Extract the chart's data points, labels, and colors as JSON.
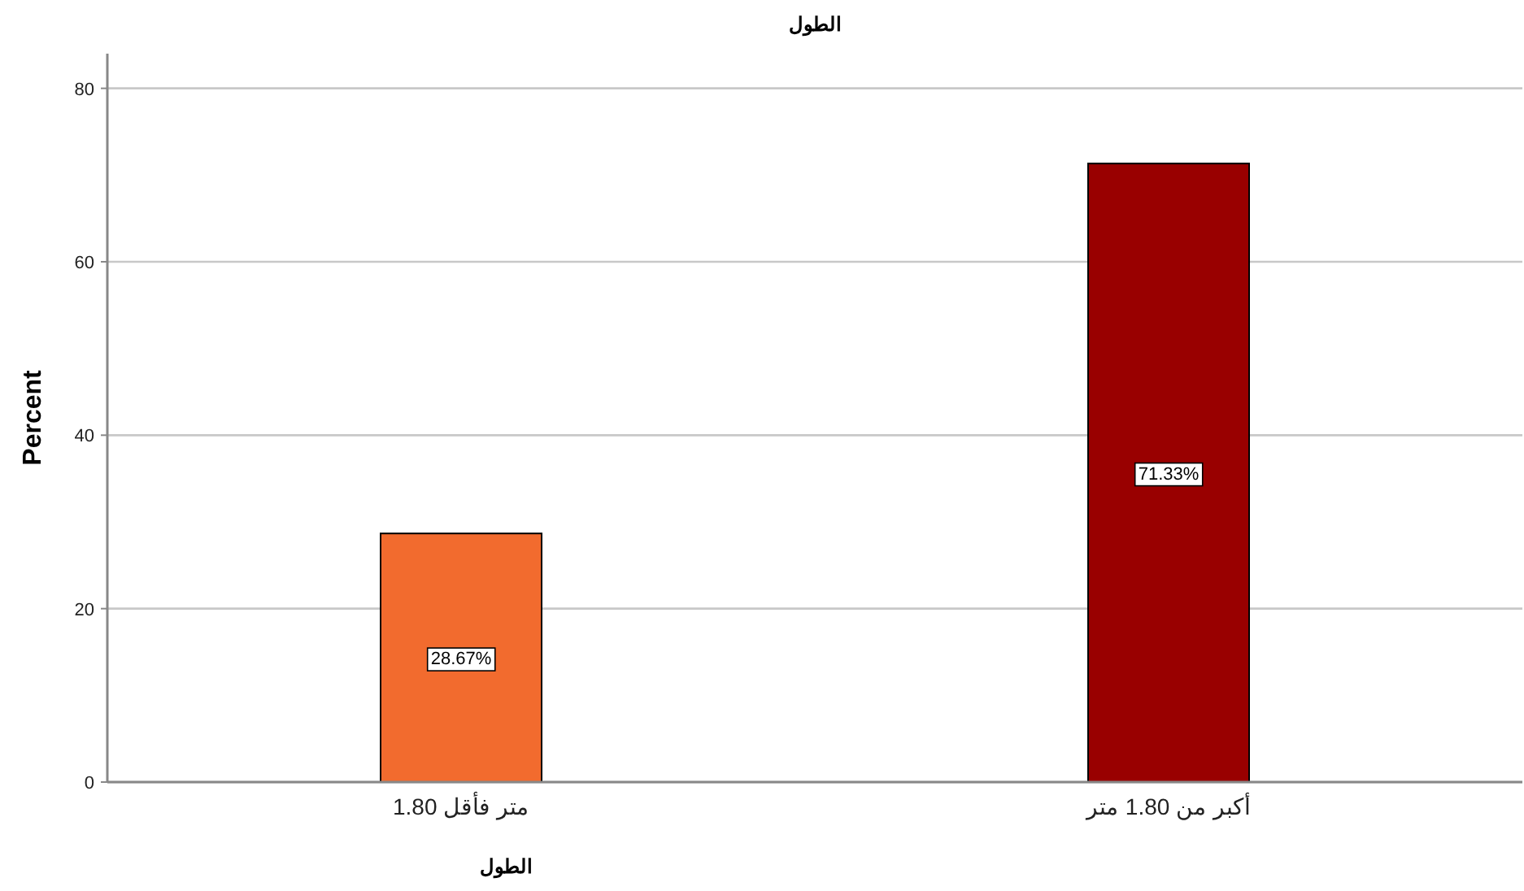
{
  "chart_data": {
    "type": "bar",
    "title": "الطول",
    "xlabel": "الطول",
    "ylabel": "Percent",
    "categories": [
      "1.80 متر فأقل",
      "أكبر من 1.80 متر"
    ],
    "values": [
      28.67,
      71.33
    ],
    "colors": [
      "#f26b2e",
      "#990000"
    ],
    "value_labels": [
      "28.67%",
      "71.33%"
    ],
    "ylim": [
      0,
      84
    ],
    "yticks": [
      0,
      20,
      40,
      60,
      80
    ],
    "grid": "y"
  }
}
